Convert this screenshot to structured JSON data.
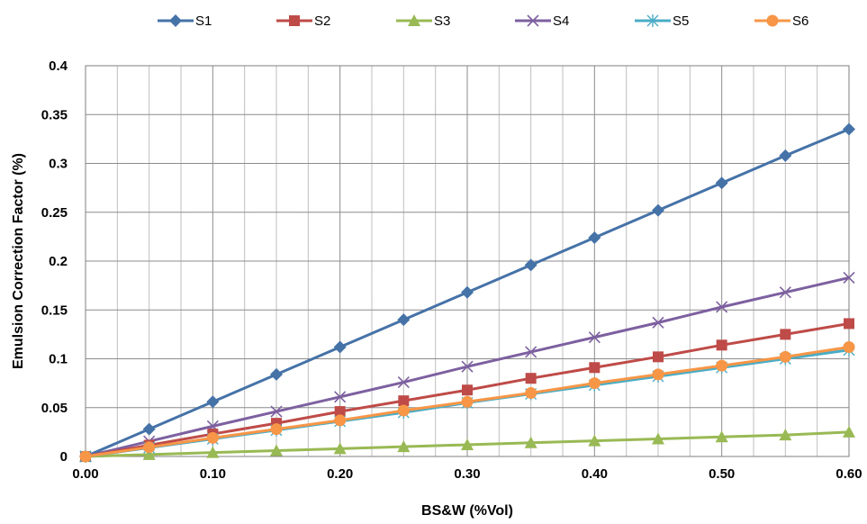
{
  "chart_data": {
    "type": "line",
    "title": "",
    "xlabel": "BS&W (%Vol)",
    "ylabel": "Emulsion Correction Factor (%)",
    "x": [
      0,
      0.05,
      0.1,
      0.15,
      0.2,
      0.25,
      0.3,
      0.35,
      0.4,
      0.45,
      0.5,
      0.55,
      0.6
    ],
    "xlim": [
      0,
      0.6
    ],
    "ylim": [
      0,
      0.4
    ],
    "x_ticks": [
      "0.00",
      "0.10",
      "0.20",
      "0.30",
      "0.40",
      "0.50",
      "0.60"
    ],
    "y_ticks": [
      "0",
      "0.05",
      "0.1",
      "0.15",
      "0.2",
      "0.25",
      "0.3",
      "0.35",
      "0.4"
    ],
    "grid": true,
    "legend_position": "top",
    "series": [
      {
        "name": "S1",
        "color": "#4572A7",
        "marker": "diamond",
        "values": [
          0,
          0.028,
          0.056,
          0.084,
          0.112,
          0.14,
          0.168,
          0.196,
          0.224,
          0.252,
          0.28,
          0.308,
          0.335
        ]
      },
      {
        "name": "S2",
        "color": "#BE4B48",
        "marker": "square",
        "values": [
          0,
          0.0115,
          0.023,
          0.034,
          0.046,
          0.057,
          0.068,
          0.08,
          0.091,
          0.102,
          0.114,
          0.125,
          0.136
        ]
      },
      {
        "name": "S3",
        "color": "#98B954",
        "marker": "triangle",
        "values": [
          0,
          0.002,
          0.004,
          0.006,
          0.008,
          0.01,
          0.012,
          0.014,
          0.016,
          0.018,
          0.02,
          0.022,
          0.025
        ]
      },
      {
        "name": "S4",
        "color": "#7D60A0",
        "marker": "x",
        "values": [
          0,
          0.0155,
          0.031,
          0.046,
          0.061,
          0.076,
          0.092,
          0.107,
          0.122,
          0.137,
          0.153,
          0.168,
          0.183
        ]
      },
      {
        "name": "S5",
        "color": "#4BACC6",
        "marker": "asterisk",
        "values": [
          0,
          0.009,
          0.018,
          0.027,
          0.036,
          0.045,
          0.055,
          0.064,
          0.073,
          0.082,
          0.091,
          0.1,
          0.109
        ]
      },
      {
        "name": "S6",
        "color": "#F79646",
        "marker": "circle",
        "values": [
          0,
          0.0095,
          0.019,
          0.028,
          0.037,
          0.047,
          0.056,
          0.065,
          0.075,
          0.084,
          0.093,
          0.102,
          0.112
        ]
      }
    ]
  }
}
